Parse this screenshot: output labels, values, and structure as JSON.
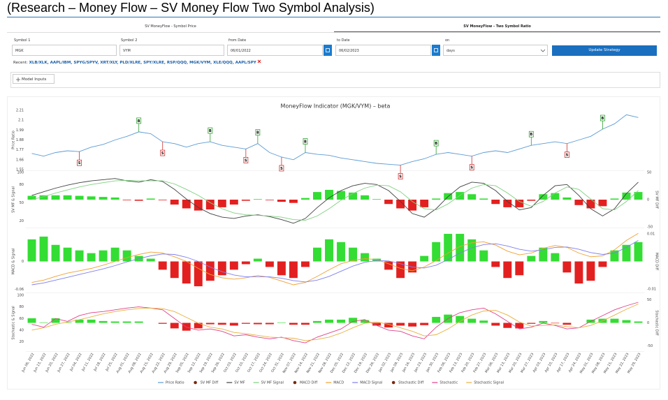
{
  "header": {
    "title": "(Research – Money Flow – SV Money Flow Two Symbol Analysis)"
  },
  "tabs": [
    "SV MoneyFlow - Symbol Price",
    "SV MoneyFlow - Two Symbol Ratio"
  ],
  "form": {
    "fields": [
      {
        "label": "Symbol 1",
        "value": "MGK"
      },
      {
        "label": "Symbol 2",
        "value": "VYM"
      },
      {
        "label": "from Date",
        "value": "06/01/2022"
      },
      {
        "label": "to Date",
        "value": "06/02/2023"
      },
      {
        "label": "on",
        "value": "days"
      }
    ],
    "button": "Update Strategy"
  },
  "recent": {
    "label": "Recent:",
    "items": "XLB/XLK, AAPL/IBM, SPYG/SPYV, XRT/XLY, PLD/XLRE, SPY/XLRE, RSP/QQQ, MGK/VYM, XLE/QQQ, AAPL/SPY"
  },
  "model_inputs": "Model Inputs",
  "chart_data": {
    "type": "line",
    "title": "MoneyFlow Indicator (MGK/VYM) – beta",
    "categories": [
      "Jun 06, 2022",
      "Jun 13, 2022",
      "Jun 20, 2022",
      "Jun 27, 2022",
      "Jul 04, 2022",
      "Jul 11, 2022",
      "Jul 18, 2022",
      "Jul 25, 2022",
      "Aug 01, 2022",
      "Aug 08, 2022",
      "Aug 15, 2022",
      "Aug 22, 2022",
      "Aug 29, 2022",
      "Sep 05, 2022",
      "Sep 12, 2022",
      "Sep 19, 2022",
      "Sep 26, 2022",
      "Oct 03, 2022",
      "Oct 10, 2022",
      "Oct 17, 2022",
      "Oct 24, 2022",
      "Oct 31, 2022",
      "Nov 07, 2022",
      "Nov 14, 2022",
      "Nov 21, 2022",
      "Nov 28, 2022",
      "Dec 05, 2022",
      "Dec 12, 2022",
      "Dec 19, 2022",
      "Dec 26, 2022",
      "Jan 02, 2023",
      "Jan 09, 2023",
      "Jan 16, 2023",
      "Jan 23, 2023",
      "Jan 30, 2023",
      "Feb 06, 2023",
      "Feb 13, 2023",
      "Feb 20, 2023",
      "Feb 27, 2023",
      "Mar 06, 2023",
      "Mar 13, 2023",
      "Mar 20, 2023",
      "Mar 27, 2023",
      "Apr 03, 2023",
      "Apr 10, 2023",
      "Apr 17, 2023",
      "Apr 24, 2023",
      "May 01, 2023",
      "May 08, 2023",
      "May 15, 2023",
      "May 22, 2023",
      "May 29, 2023"
    ],
    "positive_color": "#33dd33",
    "negative_color": "#e32020",
    "signals": [
      {
        "category": "Jul 04, 2022",
        "label": "S",
        "color": "#d03030"
      },
      {
        "category": "Aug 08, 2022",
        "label": "B",
        "color": "#30a030"
      },
      {
        "category": "Aug 22, 2022",
        "label": "S",
        "color": "#d03030"
      },
      {
        "category": "Sep 19, 2022",
        "label": "B",
        "color": "#30a030"
      },
      {
        "category": "Oct 10, 2022",
        "label": "S",
        "color": "#d03030"
      },
      {
        "category": "Oct 17, 2022",
        "label": "B",
        "color": "#30a030"
      },
      {
        "category": "Oct 31, 2022",
        "label": "S",
        "color": "#d03030"
      },
      {
        "category": "Nov 14, 2022",
        "label": "B",
        "color": "#30a030"
      },
      {
        "category": "Jan 09, 2023",
        "label": "S",
        "color": "#d03030"
      },
      {
        "category": "Jan 30, 2023",
        "label": "B",
        "color": "#30a030"
      },
      {
        "category": "Feb 20, 2023",
        "label": "S",
        "color": "#d03030"
      },
      {
        "category": "Mar 27, 2023",
        "label": "B",
        "color": "#30a030"
      },
      {
        "category": "Apr 17, 2023",
        "label": "S",
        "color": "#d03030"
      },
      {
        "category": "May 08, 2023",
        "label": "B",
        "color": "#30a030"
      }
    ],
    "panels": [
      {
        "ylabel": "Price Ratio",
        "ylim": [
          1.55,
          2.21
        ],
        "yticks": [
          1.55,
          1.66,
          1.77,
          1.88,
          1.99,
          2.1,
          2.21
        ],
        "series": [
          {
            "name": "Price Ratio",
            "type": "line",
            "color": "#5b9bd5",
            "values": [
              1.73,
              1.7,
              1.74,
              1.76,
              1.75,
              1.8,
              1.83,
              1.88,
              1.92,
              1.97,
              1.95,
              1.86,
              1.84,
              1.8,
              1.84,
              1.86,
              1.82,
              1.8,
              1.78,
              1.84,
              1.74,
              1.69,
              1.66,
              1.74,
              1.72,
              1.71,
              1.68,
              1.66,
              1.64,
              1.62,
              1.61,
              1.6,
              1.64,
              1.67,
              1.72,
              1.74,
              1.72,
              1.7,
              1.74,
              1.76,
              1.74,
              1.78,
              1.82,
              1.84,
              1.86,
              1.84,
              1.88,
              1.92,
              2.0,
              2.06,
              2.16,
              2.13
            ]
          }
        ]
      },
      {
        "ylabel": "SV MF & Signal",
        "y2label": "SV MF Diff",
        "ylim": [
          10,
          100
        ],
        "yticks": [
          20,
          50,
          80,
          100
        ],
        "y2lim": [
          -50,
          50
        ],
        "y2ticks": [
          -50,
          0,
          50
        ],
        "series": [
          {
            "name": "SV MF Diff",
            "type": "bar",
            "axis": "y2",
            "color": "#7a2a10",
            "values": [
              7,
              8,
              8,
              8,
              7,
              6,
              5,
              4,
              -1,
              -2,
              2,
              -1,
              -9,
              -16,
              -20,
              -18,
              -14,
              -9,
              -2,
              1,
              -1,
              -4,
              -6,
              3,
              14,
              18,
              16,
              13,
              8,
              1,
              -8,
              -16,
              -20,
              -14,
              2,
              12,
              14,
              10,
              2,
              -8,
              -14,
              -14,
              -2,
              10,
              12,
              4,
              -10,
              -16,
              -12,
              2,
              13,
              14
            ]
          },
          {
            "name": "SV MF",
            "type": "line",
            "color": "#404040",
            "values": [
              62,
              68,
              74,
              79,
              83,
              86,
              88,
              90,
              86,
              84,
              88,
              85,
              72,
              56,
              42,
              32,
              26,
              24,
              28,
              30,
              27,
              22,
              16,
              24,
              42,
              58,
              70,
              78,
              82,
              80,
              70,
              52,
              32,
              26,
              40,
              60,
              76,
              84,
              82,
              70,
              52,
              38,
              42,
              62,
              78,
              80,
              62,
              40,
              28,
              40,
              65,
              84
            ]
          },
          {
            "name": "SV MF Signal",
            "type": "line",
            "color": "#7fd07f",
            "values": [
              55,
              60,
              66,
              71,
              76,
              80,
              83,
              86,
              87,
              86,
              86,
              86,
              81,
              72,
              62,
              50,
              40,
              33,
              30,
              29,
              28,
              26,
              22,
              21,
              28,
              40,
              54,
              65,
              74,
              79,
              78,
              68,
              52,
              40,
              38,
              48,
              62,
              74,
              80,
              78,
              66,
              52,
              44,
              52,
              66,
              76,
              72,
              56,
              40,
              38,
              52,
              70
            ]
          }
        ]
      },
      {
        "ylabel": "MACD & Signal",
        "y2label": "MACD Diff",
        "ylim": [
          -0.065,
          0.065
        ],
        "yticks": [
          -0.06,
          0
        ],
        "y2lim": [
          -0.011,
          0.011
        ],
        "y2ticks": [
          -0.01,
          0.01
        ],
        "series": [
          {
            "name": "MACD Diff",
            "type": "bar",
            "axis": "y2",
            "color": "#7a2a10",
            "values": [
              0.008,
              0.009,
              0.006,
              0.005,
              0.004,
              0.003,
              0.004,
              0.005,
              0.004,
              0.002,
              0.001,
              -0.003,
              -0.006,
              -0.008,
              -0.009,
              -0.007,
              -0.005,
              -0.003,
              -0.001,
              0.001,
              -0.002,
              -0.005,
              -0.006,
              -0.002,
              0.005,
              0.008,
              0.007,
              0.005,
              0.003,
              0.001,
              -0.003,
              -0.006,
              -0.004,
              0.002,
              0.007,
              0.01,
              0.01,
              0.008,
              0.004,
              -0.002,
              -0.006,
              -0.005,
              0.002,
              0.005,
              0.003,
              -0.004,
              -0.008,
              -0.007,
              -0.002,
              0.004,
              0.006,
              0.007
            ]
          },
          {
            "name": "MACD",
            "type": "line",
            "color": "#f0a030",
            "values": [
              -0.045,
              -0.04,
              -0.032,
              -0.025,
              -0.02,
              -0.015,
              -0.008,
              0,
              0.008,
              0.015,
              0.02,
              0.018,
              0.01,
              0,
              -0.015,
              -0.028,
              -0.035,
              -0.038,
              -0.035,
              -0.03,
              -0.034,
              -0.042,
              -0.05,
              -0.045,
              -0.032,
              -0.018,
              -0.005,
              0.002,
              0.006,
              0.004,
              -0.005,
              -0.015,
              -0.02,
              -0.012,
              0.002,
              0.018,
              0.032,
              0.04,
              0.042,
              0.035,
              0.022,
              0.014,
              0.018,
              0.028,
              0.034,
              0.03,
              0.018,
              0.01,
              0.012,
              0.025,
              0.045,
              0.06
            ]
          },
          {
            "name": "MACD Signal",
            "type": "line",
            "color": "#7f7fee",
            "values": [
              -0.05,
              -0.046,
              -0.04,
              -0.034,
              -0.028,
              -0.022,
              -0.016,
              -0.009,
              -0.001,
              0.006,
              0.012,
              0.016,
              0.015,
              0.009,
              0,
              -0.012,
              -0.022,
              -0.029,
              -0.033,
              -0.033,
              -0.033,
              -0.036,
              -0.041,
              -0.044,
              -0.04,
              -0.032,
              -0.021,
              -0.01,
              -0.002,
              0.002,
              0.001,
              -0.005,
              -0.012,
              -0.014,
              -0.008,
              0.004,
              0.018,
              0.029,
              0.036,
              0.038,
              0.033,
              0.026,
              0.022,
              0.025,
              0.03,
              0.031,
              0.026,
              0.019,
              0.015,
              0.018,
              0.03,
              0.045
            ]
          }
        ]
      },
      {
        "ylabel": "Stochastic & Signal",
        "y2label": "Stochastic Diff",
        "ylim": [
          5,
          100
        ],
        "yticks": [
          20,
          40,
          60,
          80,
          100
        ],
        "y2lim": [
          -60,
          60
        ],
        "y2ticks": [
          -50,
          0,
          50
        ],
        "series": [
          {
            "name": "Stochastic Diff",
            "type": "bar",
            "axis": "y2",
            "color": "#7a2a10",
            "values": [
              10,
              1,
              10,
              1,
              7,
              7,
              4,
              3,
              3,
              3,
              0,
              -2,
              -12,
              -17,
              -12,
              -3,
              -4,
              -6,
              -2,
              -3,
              -3,
              1,
              -4,
              -4,
              4,
              7,
              7,
              11,
              6,
              -6,
              -10,
              -6,
              -8,
              -5,
              13,
              18,
              15,
              9,
              5,
              -6,
              -11,
              -12,
              -2,
              4,
              -1,
              -4,
              0,
              7,
              9,
              9,
              6,
              3
            ]
          },
          {
            "name": "Stochastic",
            "type": "line",
            "color": "#e0408a",
            "values": [
              50,
              45,
              60,
              55,
              65,
              70,
              72,
              75,
              78,
              80,
              78,
              75,
              60,
              45,
              40,
              42,
              38,
              30,
              32,
              28,
              25,
              28,
              22,
              18,
              28,
              35,
              42,
              55,
              58,
              48,
              40,
              38,
              30,
              25,
              45,
              60,
              70,
              75,
              78,
              68,
              55,
              42,
              45,
              52,
              48,
              42,
              44,
              55,
              65,
              75,
              82,
              88
            ]
          },
          {
            "name": "Stochastic Signal",
            "type": "line",
            "color": "#e8b040",
            "values": [
              40,
              44,
              50,
              54,
              58,
              63,
              68,
              72,
              75,
              77,
              78,
              77,
              72,
              62,
              52,
              45,
              42,
              36,
              34,
              31,
              28,
              27,
              26,
              22,
              24,
              28,
              35,
              44,
              52,
              54,
              50,
              44,
              38,
              30,
              32,
              42,
              55,
              66,
              73,
              74,
              66,
              54,
              47,
              48,
              49,
              46,
              44,
              48,
              56,
              66,
              76,
              85
            ]
          }
        ]
      }
    ]
  }
}
